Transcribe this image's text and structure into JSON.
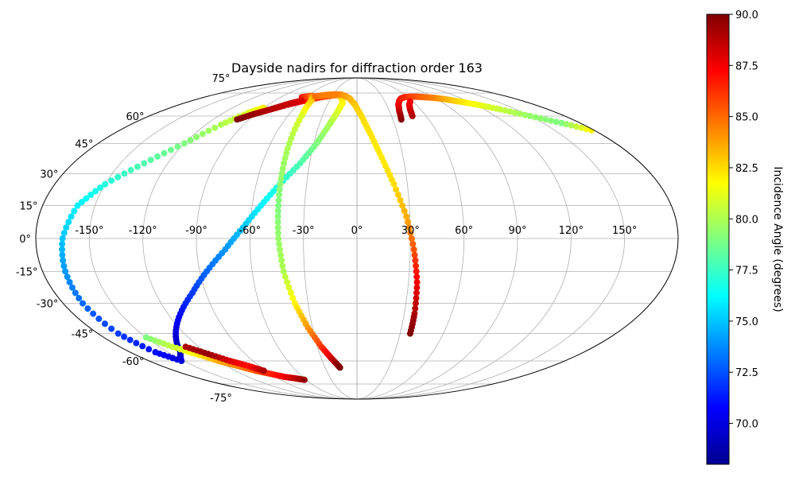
{
  "chart_data": {
    "type": "scatter",
    "projection": "mollweide",
    "title": "Dayside nadirs for diffraction order 163",
    "xlabel": "",
    "ylabel": "",
    "grid": true,
    "xlim": [
      -180,
      180
    ],
    "ylim": [
      -90,
      90
    ],
    "lon_tick_labels": [
      "-150°",
      "-120°",
      "-90°",
      "-60°",
      "-30°",
      "0°",
      "30°",
      "60°",
      "90°",
      "120°",
      "150°"
    ],
    "lon_ticks": [
      -150,
      -120,
      -90,
      -60,
      -30,
      0,
      30,
      60,
      90,
      120,
      150
    ],
    "lat_tick_labels": [
      "-75°",
      "-60°",
      "-45°",
      "-30°",
      "-15°",
      "0°",
      "15°",
      "30°",
      "45°",
      "60°",
      "75°"
    ],
    "lat_ticks": [
      -75,
      -60,
      -45,
      -30,
      -15,
      0,
      15,
      30,
      45,
      60,
      75
    ],
    "colorbar": {
      "label": "Incidence Angle (degrees)",
      "colormap": "jet",
      "range": [
        68,
        90
      ],
      "ticks": [
        70.0,
        72.5,
        75.0,
        77.5,
        80.0,
        82.5,
        85.0,
        87.5,
        90.0
      ],
      "tick_labels": [
        "70.0",
        "72.5",
        "75.0",
        "77.5",
        "80.0",
        "82.5",
        "85.0",
        "87.5",
        "90.0"
      ]
    },
    "series": [
      {
        "lon": [
          -86,
          -70,
          -55,
          -42,
          -32,
          -24,
          -18,
          -15,
          -18,
          -22,
          -28,
          -36,
          -46,
          -55,
          -64,
          -74,
          -86,
          -98,
          -112,
          -126,
          -140,
          -152,
          -160,
          -166,
          -168,
          -167,
          -165,
          -160,
          -150,
          -135,
          -120,
          -108,
          -98,
          -90
        ],
        "lat": [
          63,
          67,
          70,
          72,
          73,
          73.5,
          72,
          68,
          62,
          55,
          45,
          35,
          25,
          15,
          5,
          -5,
          -15,
          -25,
          -35,
          -45,
          -55,
          -60,
          -55,
          -45,
          -30,
          -15,
          0,
          15,
          25,
          35,
          45,
          55,
          62,
          65
        ],
        "incidence": [
          89,
          88,
          87,
          86,
          85,
          84,
          83,
          82,
          81,
          80,
          79,
          78,
          77,
          76,
          75,
          74,
          73,
          72,
          71,
          70,
          69,
          70,
          71,
          72,
          73,
          74,
          75,
          76,
          77,
          78,
          79,
          80,
          81,
          82
        ]
      },
      {
        "lon": [
          -65,
          -55,
          -50,
          -48,
          -47,
          -46,
          -45,
          -44,
          -42,
          -38,
          -33,
          -27,
          -22,
          -18,
          -16
        ],
        "lat": [
          72,
          73,
          70,
          60,
          45,
          30,
          15,
          0,
          -15,
          -30,
          -42,
          -52,
          -58,
          -62,
          -64
        ],
        "incidence": [
          87,
          85,
          83,
          81,
          80,
          79.5,
          79,
          79.5,
          80,
          82,
          84,
          86,
          88,
          89.5,
          90
        ]
      },
      {
        "lon": [
          -50,
          -40,
          -30,
          -22,
          -15,
          -8,
          -2,
          4,
          10,
          16,
          22,
          28,
          32,
          35,
          36.5,
          37
        ],
        "lat": [
          72.5,
          73.5,
          74,
          74,
          73,
          71,
          67,
          60,
          50,
          38,
          25,
          10,
          -5,
          -20,
          -35,
          -45
        ],
        "incidence": [
          85,
          84.5,
          84.5,
          84.5,
          84,
          83.5,
          83,
          82.5,
          82.3,
          82.2,
          82.5,
          83.5,
          85.5,
          87.5,
          89,
          90
        ]
      },
      {
        "lon": [
          -100,
          -92,
          -85,
          -78,
          -72,
          -66,
          -60
        ],
        "lat": [
          58,
          61,
          63,
          65,
          67,
          68.5,
          69.5
        ],
        "incidence": [
          90,
          89.5,
          89,
          88.8,
          88.5,
          88.3,
          88
        ]
      },
      {
        "lon": [
          -150,
          -140,
          -130,
          -120,
          -110,
          -100,
          -90,
          -80,
          -70,
          -62
        ],
        "lat": [
          -47,
          -52,
          -56,
          -60,
          -63,
          -66,
          -68,
          -70,
          -71,
          -72
        ],
        "incidence": [
          79,
          80.5,
          82,
          83.5,
          84.5,
          85.5,
          86.5,
          87.5,
          88.5,
          89.5
        ]
      },
      {
        "lon": [
          37,
          39,
          42,
          46,
          50,
          56,
          64,
          72,
          80,
          90,
          100,
          110,
          122,
          135,
          150,
          165,
          178
        ],
        "lat": [
          58,
          63,
          67,
          69.5,
          71,
          72,
          72.3,
          72.3,
          72,
          71.5,
          70.5,
          69,
          67,
          64,
          60,
          56,
          52
        ],
        "incidence": [
          90,
          89,
          88,
          87.5,
          87,
          86.5,
          86,
          85.5,
          85,
          84.5,
          83.5,
          82.5,
          81.5,
          80.5,
          79.5,
          79,
          82
        ]
      },
      {
        "lon": [
          48,
          50,
          53,
          57
        ],
        "lat": [
          60,
          64,
          67,
          69
        ],
        "incidence": [
          89,
          88.5,
          88,
          87.5
        ]
      },
      {
        "lon": [
          -130,
          -120,
          -110,
          -100,
          -92
        ],
        "lat": [
          -52,
          -56,
          -60,
          -63,
          -66
        ],
        "incidence": [
          89,
          89.5,
          88,
          87,
          89
        ]
      }
    ]
  }
}
